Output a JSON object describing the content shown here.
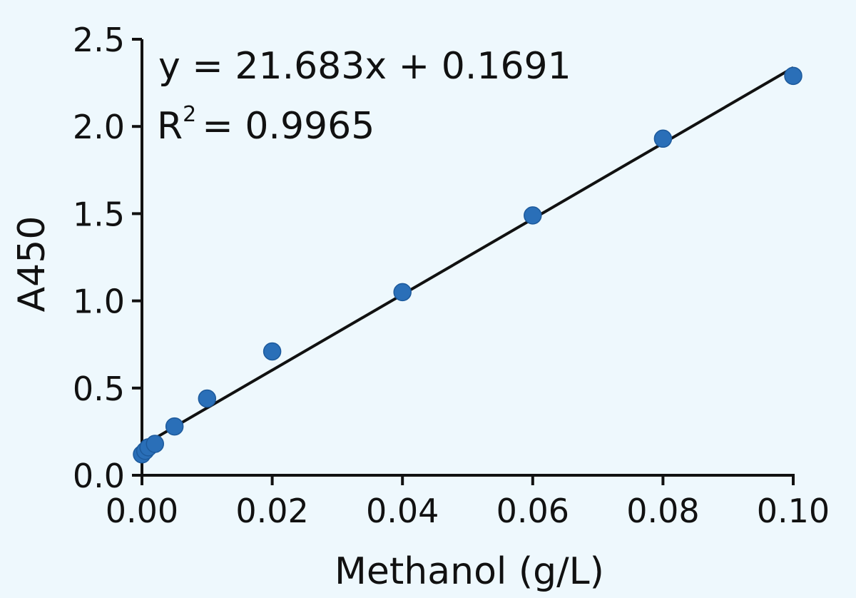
{
  "chart_data": {
    "type": "scatter",
    "xlabel": "Methanol (g/L)",
    "ylabel": "A450",
    "xlim": [
      0,
      0.1
    ],
    "ylim": [
      0,
      2.5
    ],
    "x_ticks": [
      "0.00",
      "0.02",
      "0.04",
      "0.06",
      "0.08",
      "0.10"
    ],
    "y_ticks": [
      "0.0",
      "0.5",
      "1.0",
      "1.5",
      "2.0",
      "2.5"
    ],
    "grid": false,
    "marker_color": "#2a6fb8",
    "series": [
      {
        "x": [
          0,
          0.0005,
          0.001,
          0.002,
          0.005,
          0.01,
          0.02,
          0.04,
          0.06,
          0.08,
          0.1
        ],
        "y": [
          0.12,
          0.14,
          0.16,
          0.18,
          0.28,
          0.44,
          0.71,
          1.05,
          1.49,
          1.93,
          2.29
        ]
      }
    ],
    "trendline": {
      "slope": 21.683,
      "intercept": 0.1691,
      "x_range": [
        0,
        0.1
      ],
      "color": "#111111"
    },
    "annotations": {
      "equation": "y = 21.683x + 0.1691",
      "r2_prefix": "R",
      "r2_sup": "2",
      "r2_value": "= 0.9965"
    }
  }
}
